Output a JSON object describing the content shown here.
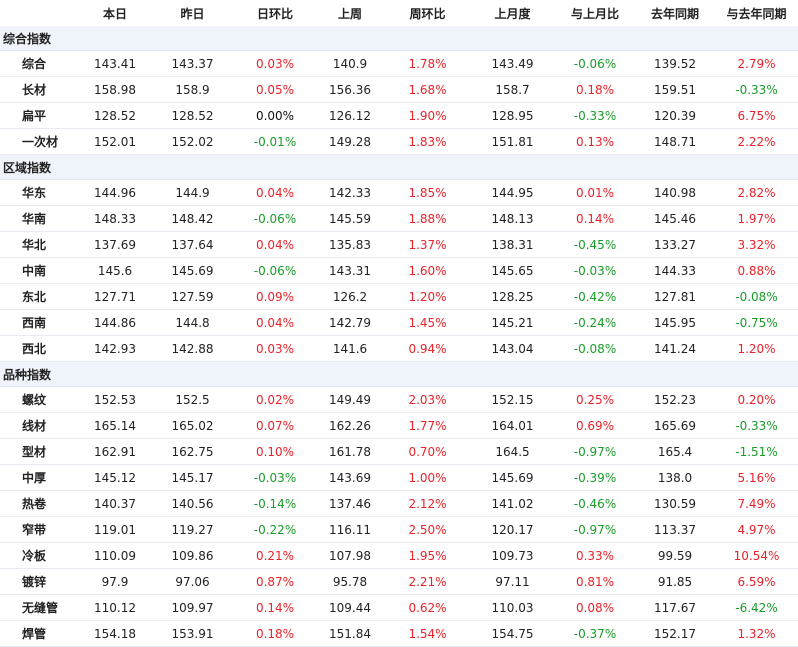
{
  "colors": {
    "up": "#e8232b",
    "down": "#1a9c2b",
    "section_bg": "#eef4fa"
  },
  "headers": [
    "",
    "本日",
    "昨日",
    "日环比",
    "上周",
    "周环比",
    "上月度",
    "与上月比",
    "去年同期",
    "与去年同期"
  ],
  "sections": [
    {
      "title": "综合指数",
      "rows": [
        [
          "综合",
          "143.41",
          "143.37",
          "0.03%",
          "140.9",
          "1.78%",
          "143.49",
          "-0.06%",
          "139.52",
          "2.79%"
        ],
        [
          "长材",
          "158.98",
          "158.9",
          "0.05%",
          "156.36",
          "1.68%",
          "158.7",
          "0.18%",
          "159.51",
          "-0.33%"
        ],
        [
          "扁平",
          "128.52",
          "128.52",
          "0.00%",
          "126.12",
          "1.90%",
          "128.95",
          "-0.33%",
          "120.39",
          "6.75%"
        ],
        [
          "一次材",
          "152.01",
          "152.02",
          "-0.01%",
          "149.28",
          "1.83%",
          "151.81",
          "0.13%",
          "148.71",
          "2.22%"
        ]
      ]
    },
    {
      "title": "区域指数",
      "rows": [
        [
          "华东",
          "144.96",
          "144.9",
          "0.04%",
          "142.33",
          "1.85%",
          "144.95",
          "0.01%",
          "140.98",
          "2.82%"
        ],
        [
          "华南",
          "148.33",
          "148.42",
          "-0.06%",
          "145.59",
          "1.88%",
          "148.13",
          "0.14%",
          "145.46",
          "1.97%"
        ],
        [
          "华北",
          "137.69",
          "137.64",
          "0.04%",
          "135.83",
          "1.37%",
          "138.31",
          "-0.45%",
          "133.27",
          "3.32%"
        ],
        [
          "中南",
          "145.6",
          "145.69",
          "-0.06%",
          "143.31",
          "1.60%",
          "145.65",
          "-0.03%",
          "144.33",
          "0.88%"
        ],
        [
          "东北",
          "127.71",
          "127.59",
          "0.09%",
          "126.2",
          "1.20%",
          "128.25",
          "-0.42%",
          "127.81",
          "-0.08%"
        ],
        [
          "西南",
          "144.86",
          "144.8",
          "0.04%",
          "142.79",
          "1.45%",
          "145.21",
          "-0.24%",
          "145.95",
          "-0.75%"
        ],
        [
          "西北",
          "142.93",
          "142.88",
          "0.03%",
          "141.6",
          "0.94%",
          "143.04",
          "-0.08%",
          "141.24",
          "1.20%"
        ]
      ]
    },
    {
      "title": "品种指数",
      "rows": [
        [
          "螺纹",
          "152.53",
          "152.5",
          "0.02%",
          "149.49",
          "2.03%",
          "152.15",
          "0.25%",
          "152.23",
          "0.20%"
        ],
        [
          "线材",
          "165.14",
          "165.02",
          "0.07%",
          "162.26",
          "1.77%",
          "164.01",
          "0.69%",
          "165.69",
          "-0.33%"
        ],
        [
          "型材",
          "162.91",
          "162.75",
          "0.10%",
          "161.78",
          "0.70%",
          "164.5",
          "-0.97%",
          "165.4",
          "-1.51%"
        ],
        [
          "中厚",
          "145.12",
          "145.17",
          "-0.03%",
          "143.69",
          "1.00%",
          "145.69",
          "-0.39%",
          "138.0",
          "5.16%"
        ],
        [
          "热卷",
          "140.37",
          "140.56",
          "-0.14%",
          "137.46",
          "2.12%",
          "141.02",
          "-0.46%",
          "130.59",
          "7.49%"
        ],
        [
          "窄带",
          "119.01",
          "119.27",
          "-0.22%",
          "116.11",
          "2.50%",
          "120.17",
          "-0.97%",
          "113.37",
          "4.97%"
        ],
        [
          "冷板",
          "110.09",
          "109.86",
          "0.21%",
          "107.98",
          "1.95%",
          "109.73",
          "0.33%",
          "99.59",
          "10.54%"
        ],
        [
          "镀锌",
          "97.9",
          "97.06",
          "0.87%",
          "95.78",
          "2.21%",
          "97.11",
          "0.81%",
          "91.85",
          "6.59%"
        ],
        [
          "无缝管",
          "110.12",
          "109.97",
          "0.14%",
          "109.44",
          "0.62%",
          "110.03",
          "0.08%",
          "117.67",
          "-6.42%"
        ],
        [
          "焊管",
          "154.18",
          "153.91",
          "0.18%",
          "151.84",
          "1.54%",
          "154.75",
          "-0.37%",
          "152.17",
          "1.32%"
        ]
      ]
    }
  ]
}
